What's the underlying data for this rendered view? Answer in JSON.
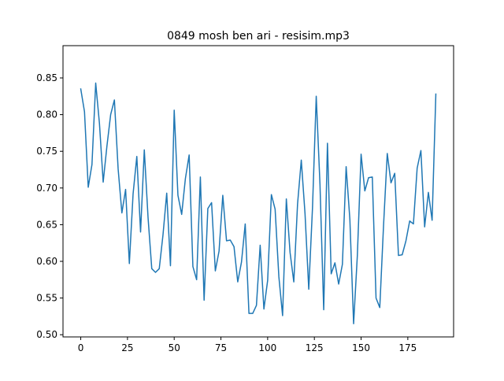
{
  "chart_data": {
    "type": "line",
    "title": "0849 mosh ben ari - resisim.mp3",
    "xlabel": "",
    "ylabel": "",
    "xlim": [
      -9.5,
      199.5
    ],
    "ylim": [
      0.497,
      0.894
    ],
    "x_ticks": [
      0,
      25,
      50,
      75,
      100,
      125,
      150,
      175
    ],
    "y_ticks": [
      0.5,
      0.55,
      0.6,
      0.65,
      0.7,
      0.75,
      0.8,
      0.85
    ],
    "y_tick_labels": [
      "0.50",
      "0.55",
      "0.60",
      "0.65",
      "0.70",
      "0.75",
      "0.80",
      "0.85"
    ],
    "grid": false,
    "legend": "none",
    "series": [
      {
        "color": "#1f77b4",
        "x": [
          0,
          2,
          4,
          6,
          8,
          10,
          12,
          14,
          16,
          18,
          20,
          22,
          24,
          26,
          28,
          30,
          32,
          34,
          36,
          38,
          40,
          42,
          44,
          46,
          48,
          50,
          52,
          54,
          56,
          58,
          60,
          62,
          64,
          66,
          68,
          70,
          72,
          74,
          76,
          78,
          80,
          82,
          84,
          86,
          88,
          90,
          92,
          94,
          96,
          98,
          100,
          102,
          104,
          106,
          108,
          110,
          112,
          114,
          116,
          118,
          120,
          122,
          124,
          126,
          128,
          130,
          132,
          134,
          136,
          138,
          140,
          142,
          144,
          146,
          148,
          150,
          152,
          154,
          156,
          158,
          160,
          162,
          164,
          166,
          168,
          170,
          172,
          174,
          176,
          178,
          180,
          182,
          184,
          186,
          188,
          190
        ],
        "values": [
          0.835,
          0.804,
          0.701,
          0.732,
          0.843,
          0.788,
          0.708,
          0.757,
          0.8,
          0.82,
          0.726,
          0.666,
          0.698,
          0.597,
          0.692,
          0.743,
          0.64,
          0.752,
          0.66,
          0.59,
          0.585,
          0.59,
          0.636,
          0.693,
          0.594,
          0.806,
          0.69,
          0.664,
          0.713,
          0.745,
          0.593,
          0.575,
          0.715,
          0.547,
          0.672,
          0.68,
          0.587,
          0.614,
          0.69,
          0.628,
          0.629,
          0.62,
          0.572,
          0.599,
          0.651,
          0.529,
          0.529,
          0.54,
          0.622,
          0.535,
          0.574,
          0.691,
          0.671,
          0.579,
          0.526,
          0.685,
          0.612,
          0.572,
          0.678,
          0.738,
          0.665,
          0.562,
          0.673,
          0.825,
          0.705,
          0.534,
          0.761,
          0.583,
          0.598,
          0.569,
          0.596,
          0.729,
          0.657,
          0.515,
          0.608,
          0.746,
          0.696,
          0.714,
          0.715,
          0.55,
          0.537,
          0.648,
          0.747,
          0.707,
          0.72,
          0.608,
          0.609,
          0.628,
          0.655,
          0.651,
          0.727,
          0.751,
          0.647,
          0.694,
          0.656,
          0.828
        ]
      }
    ]
  }
}
